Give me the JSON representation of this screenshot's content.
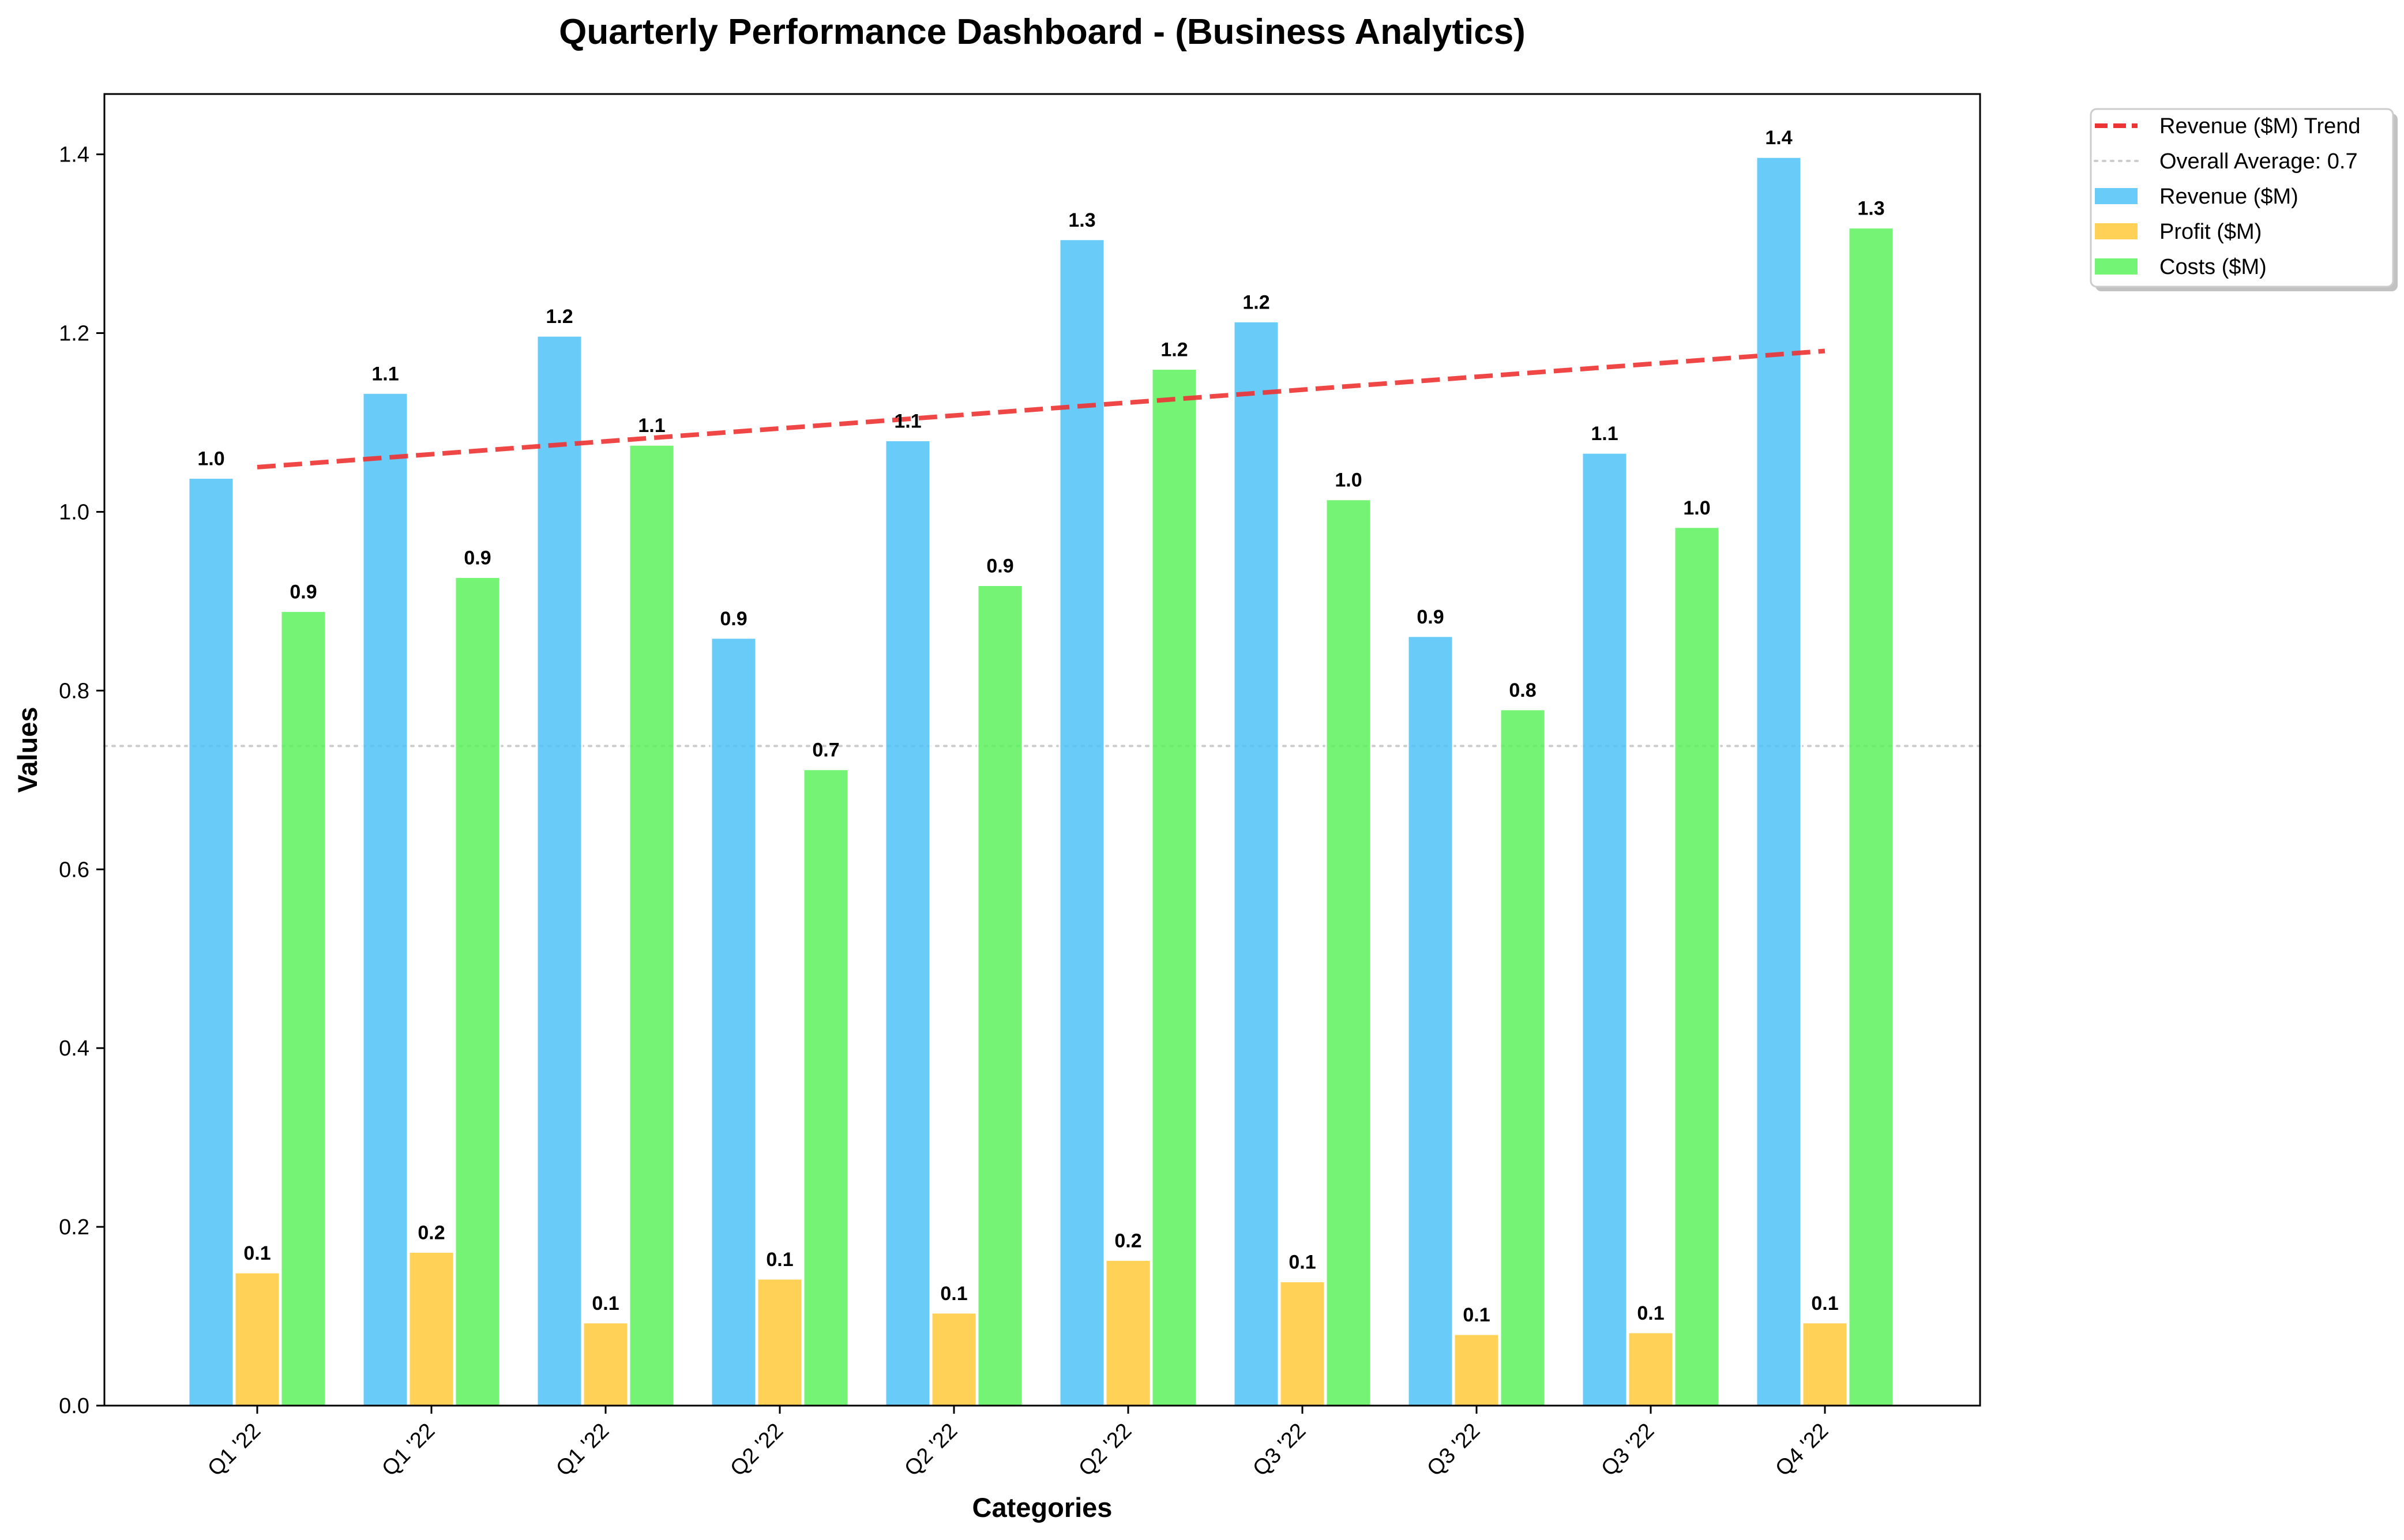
{
  "chart_data": {
    "type": "bar",
    "title": "Quarterly Performance Dashboard - (Business Analytics)",
    "xlabel": "Categories",
    "ylabel": "Values",
    "ylim": [
      0,
      1.4675
    ],
    "yticks": [
      0.0,
      0.2,
      0.4,
      0.6,
      0.8,
      1.0,
      1.2,
      1.4
    ],
    "ytick_labels": [
      "0.0",
      "0.2",
      "0.4",
      "0.6",
      "0.8",
      "1.0",
      "1.2",
      "1.4"
    ],
    "categories": [
      "Q1 '22",
      "Q1 '22",
      "Q1 '22",
      "Q2 '22",
      "Q2 '22",
      "Q2 '22",
      "Q3 '22",
      "Q3 '22",
      "Q3 '22",
      "Q4 '22"
    ],
    "series": [
      {
        "name": "Revenue ($M)",
        "color": "#4FC3F7",
        "values": [
          1.038,
          1.133,
          1.197,
          0.859,
          1.08,
          1.305,
          1.213,
          0.861,
          1.066,
          1.397
        ],
        "labels": [
          "1.0",
          "1.1",
          "1.2",
          "0.9",
          "1.1",
          "1.3",
          "1.2",
          "0.9",
          "1.1",
          "1.4"
        ]
      },
      {
        "name": "Profit ($M)",
        "color": "#FFCA3A",
        "values": [
          0.149,
          0.172,
          0.093,
          0.142,
          0.104,
          0.163,
          0.139,
          0.08,
          0.082,
          0.093
        ],
        "labels": [
          "0.1",
          "0.2",
          "0.1",
          "0.1",
          "0.1",
          "0.2",
          "0.1",
          "0.1",
          "0.1",
          "0.1"
        ]
      },
      {
        "name": "Costs ($M)",
        "color": "#5CF25C",
        "values": [
          0.889,
          0.927,
          1.075,
          0.712,
          0.918,
          1.16,
          1.014,
          0.779,
          0.983,
          1.318
        ],
        "labels": [
          "0.9",
          "0.9",
          "1.1",
          "0.7",
          "0.9",
          "1.2",
          "1.0",
          "0.8",
          "1.0",
          "1.3"
        ]
      }
    ],
    "trend": {
      "name": "Revenue ($M) Trend",
      "color": "#EE3333",
      "style": "dashed",
      "start": 1.05,
      "end": 1.18
    },
    "average": {
      "name": "Overall Average: 0.7",
      "value": 0.738,
      "color": "#cccccc",
      "style": "dotted"
    },
    "legend": {
      "placement": "outside-top-right",
      "entries": [
        "Revenue ($M) Trend",
        "Overall Average: 0.7",
        "Revenue ($M)",
        "Profit ($M)",
        "Costs ($M)"
      ]
    },
    "grid": false
  }
}
